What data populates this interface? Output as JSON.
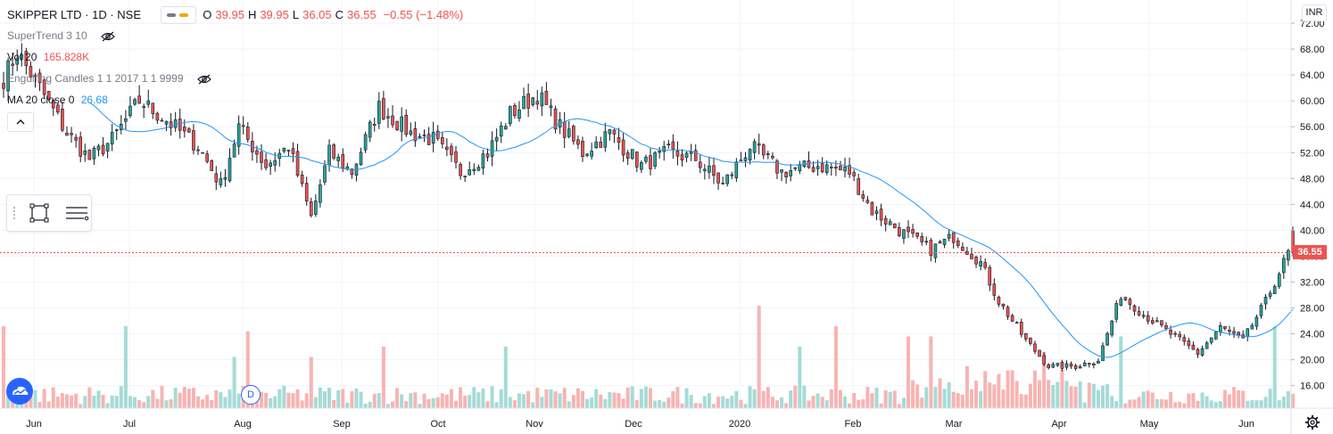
{
  "header": {
    "symbol": "SKIPPER LTD · 1D · NSE",
    "ohlc": [
      {
        "key": "O",
        "value": "39.95"
      },
      {
        "key": "H",
        "value": "39.95"
      },
      {
        "key": "L",
        "value": "36.05"
      },
      {
        "key": "C",
        "value": "36.55"
      },
      {
        "key": "",
        "value": "−0.55 (−1.48%)"
      }
    ]
  },
  "indicators": {
    "supertrend": {
      "label": "SuperTrend 3 10"
    },
    "volume": {
      "label": "Vol 20",
      "value": "165.828K"
    },
    "engulfing": {
      "label": "Engulfing Candles 1 1 2017 1 1 9999"
    },
    "ma": {
      "label": "MA 20 close 0",
      "value": "26.68"
    }
  },
  "currency": "INR",
  "last_price_label": "36.55",
  "badge_d": "D",
  "colors": {
    "up": "#26a69a",
    "down": "#ef5350",
    "ma": "#2196f3",
    "grid": "#f0f3fa",
    "axis_text": "#131722"
  },
  "icons": {
    "settings": "gear-icon",
    "collapse": "chevron-up-icon",
    "hide": "eye-off-icon"
  },
  "chart_data": {
    "type": "candlestick",
    "title": "SKIPPER LTD · 1D · NSE",
    "y_ticks": [
      "72.00",
      "68.00",
      "64.00",
      "60.00",
      "56.00",
      "52.00",
      "48.00",
      "44.00",
      "40.00",
      "36.00",
      "32.00",
      "28.00",
      "24.00",
      "20.00",
      "16.00"
    ],
    "ylim": [
      13,
      73
    ],
    "x_ticks": [
      "Jun",
      "Jul",
      "Aug",
      "Sep",
      "Oct",
      "Nov",
      "Dec",
      "2020",
      "Feb",
      "Mar",
      "Apr",
      "May",
      "Jun"
    ],
    "last_price": 36.55,
    "anchors": [
      {
        "day": 0,
        "price": 63.5
      },
      {
        "day": 3,
        "price": 67.5
      },
      {
        "day": 8,
        "price": 62
      },
      {
        "day": 14,
        "price": 55
      },
      {
        "day": 19,
        "price": 51
      },
      {
        "day": 24,
        "price": 54
      },
      {
        "day": 30,
        "price": 60
      },
      {
        "day": 36,
        "price": 57
      },
      {
        "day": 43,
        "price": 53
      },
      {
        "day": 48,
        "price": 47
      },
      {
        "day": 52,
        "price": 56
      },
      {
        "day": 58,
        "price": 50
      },
      {
        "day": 63,
        "price": 53
      },
      {
        "day": 68,
        "price": 42
      },
      {
        "day": 72,
        "price": 52
      },
      {
        "day": 77,
        "price": 49
      },
      {
        "day": 83,
        "price": 59
      },
      {
        "day": 90,
        "price": 55
      },
      {
        "day": 95,
        "price": 54
      },
      {
        "day": 101,
        "price": 49
      },
      {
        "day": 107,
        "price": 52
      },
      {
        "day": 112,
        "price": 58
      },
      {
        "day": 118,
        "price": 61
      },
      {
        "day": 123,
        "price": 56
      },
      {
        "day": 128,
        "price": 52
      },
      {
        "day": 134,
        "price": 55
      },
      {
        "day": 141,
        "price": 50
      },
      {
        "day": 147,
        "price": 52
      },
      {
        "day": 153,
        "price": 51
      },
      {
        "day": 159,
        "price": 47
      },
      {
        "day": 165,
        "price": 53
      },
      {
        "day": 172,
        "price": 49
      },
      {
        "day": 180,
        "price": 50
      },
      {
        "day": 187,
        "price": 49
      },
      {
        "day": 192,
        "price": 43
      },
      {
        "day": 198,
        "price": 40
      },
      {
        "day": 205,
        "price": 37
      },
      {
        "day": 210,
        "price": 39
      },
      {
        "day": 216,
        "price": 35
      },
      {
        "day": 220,
        "price": 29
      },
      {
        "day": 226,
        "price": 23
      },
      {
        "day": 231,
        "price": 19
      },
      {
        "day": 237,
        "price": 19
      },
      {
        "day": 242,
        "price": 20
      },
      {
        "day": 247,
        "price": 30
      },
      {
        "day": 252,
        "price": 27
      },
      {
        "day": 258,
        "price": 24
      },
      {
        "day": 264,
        "price": 21
      },
      {
        "day": 269,
        "price": 25
      },
      {
        "day": 274,
        "price": 23
      },
      {
        "day": 279,
        "price": 29
      },
      {
        "day": 284,
        "price": 36.5
      }
    ],
    "volume_spikes": [
      {
        "day": 0,
        "rel": 0.8
      },
      {
        "day": 27,
        "rel": 0.8
      },
      {
        "day": 51,
        "rel": 0.5
      },
      {
        "day": 54,
        "rel": 0.75
      },
      {
        "day": 68,
        "rel": 0.5
      },
      {
        "day": 84,
        "rel": 0.6
      },
      {
        "day": 111,
        "rel": 0.6
      },
      {
        "day": 167,
        "rel": 1.0
      },
      {
        "day": 176,
        "rel": 0.6
      },
      {
        "day": 184,
        "rel": 0.8
      },
      {
        "day": 200,
        "rel": 0.7
      },
      {
        "day": 205,
        "rel": 0.7
      },
      {
        "day": 230,
        "rel": 0.55
      },
      {
        "day": 247,
        "rel": 0.7
      },
      {
        "day": 281,
        "rel": 0.8
      }
    ]
  }
}
